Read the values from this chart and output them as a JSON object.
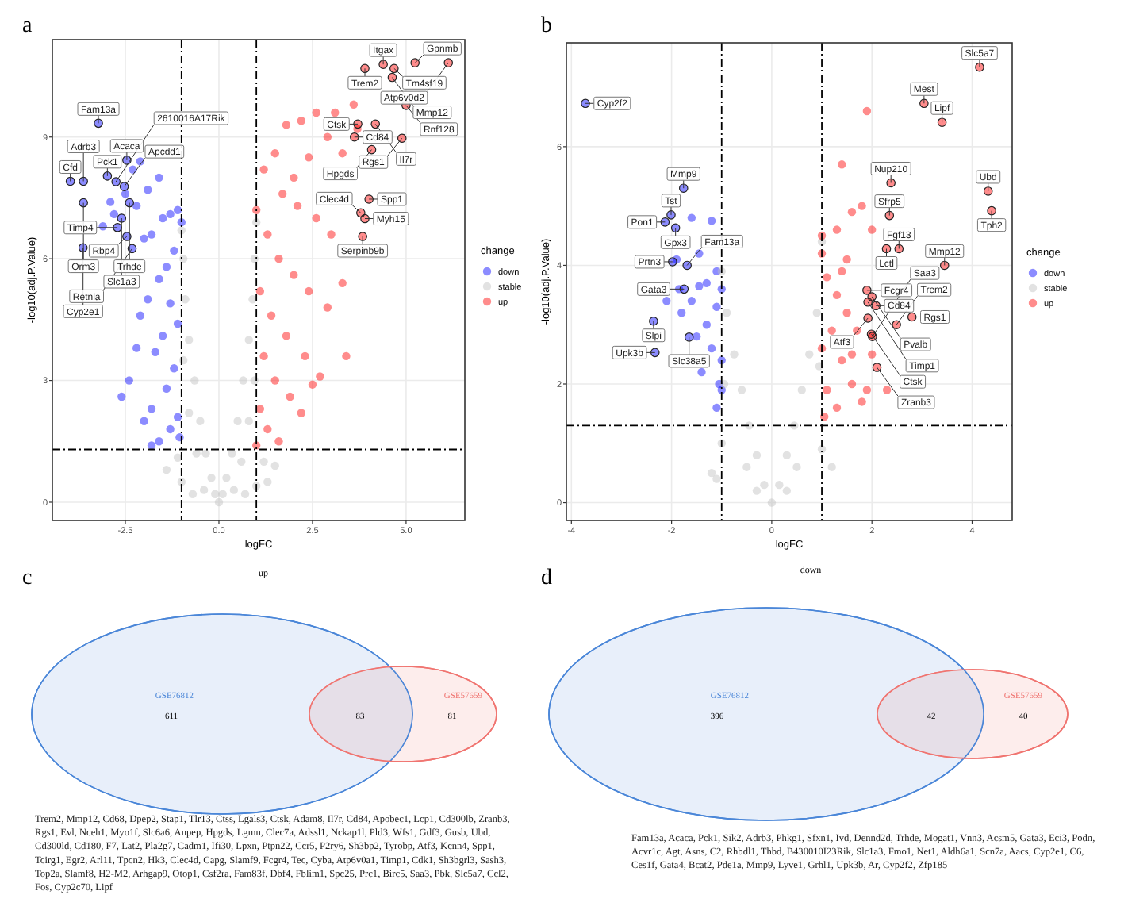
{
  "chart_data": [
    {
      "type": "scatter",
      "xlabel": "logFC",
      "ylabel": "-log10(adj.P.Value)",
      "legend_title": "change",
      "legend": "right",
      "grid": true,
      "marker": "circle",
      "xlim": [
        -4.45,
        6.57
      ],
      "ylim": [
        -0.45,
        11.4
      ],
      "xticks": [
        {
          "value": -2.5,
          "label": "-2.5"
        },
        {
          "value": 0,
          "label": "0.0"
        },
        {
          "value": 2.5,
          "label": "2.5"
        },
        {
          "value": 5,
          "label": "5.0"
        }
      ],
      "yticks": [
        0,
        3,
        6,
        9
      ],
      "ref_lines": [
        {
          "axis": "x",
          "value": -1,
          "line_style": "dashed"
        },
        {
          "axis": "x",
          "value": 1,
          "line_style": "dashed"
        },
        {
          "axis": "y",
          "value": 1.3,
          "line_style": "dashed"
        }
      ],
      "series": [
        {
          "name": "down",
          "color": "#0000ff",
          "x": [
            -1,
            -1.1,
            -1.3,
            -1.5,
            -1.8,
            -2,
            -1.2,
            -1.4,
            -1.6,
            -1.9,
            -2.1,
            -1.3,
            -1.1,
            -1.5,
            -1.7,
            -2.2,
            -2.4,
            -1.2,
            -1.4,
            -1.8,
            -2,
            -1.1,
            -1.3,
            -2.6,
            -1.6,
            -1.8,
            -1.05,
            -2.2,
            -2.3,
            -2.1,
            -2.5,
            -1.9,
            -1.6,
            -2.8,
            -3.1,
            -2.9,
            -3.22,
            -3.97,
            -3.62,
            -2.98,
            -2.46,
            -2.75,
            -2.53,
            -3.62,
            -2.39,
            -2.71,
            -2.46,
            -2.6,
            -2.32,
            -3.63
          ],
          "values": [
            6.9,
            7.2,
            7.1,
            7.0,
            6.6,
            6.5,
            6.2,
            5.8,
            5.5,
            5.0,
            4.6,
            4.9,
            4.4,
            4.1,
            3.7,
            3.8,
            3.0,
            3.3,
            2.8,
            2.3,
            2.0,
            2.1,
            1.8,
            2.6,
            1.5,
            1.4,
            1.6,
            7.3,
            8.2,
            8.4,
            7.6,
            7.7,
            8.0,
            7.1,
            6.8,
            7.4,
            9.34,
            7.91,
            7.91,
            8.04,
            8.43,
            7.9,
            7.78,
            7.38,
            7.38,
            6.77,
            6.55,
            7.0,
            6.25,
            6.27
          ]
        },
        {
          "name": "stable",
          "color": "#bebebe",
          "x": [
            0,
            0.1,
            -0.1,
            0.2,
            -0.2,
            0.35,
            -0.35,
            0.5,
            -0.5,
            0.65,
            -0.65,
            0.8,
            -0.8,
            0.9,
            -0.9,
            0.95,
            -0.95,
            -1,
            1,
            -0.6,
            0.6,
            -0.8,
            0.8,
            -0.95,
            0.95,
            -1,
            1,
            1.3,
            1.5,
            -1.4,
            0.4,
            -0.4,
            1.2,
            -1.1,
            0.7,
            -0.7
          ],
          "values": [
            0,
            0.2,
            0.2,
            0.6,
            0.6,
            1.2,
            1.2,
            2,
            2,
            3,
            3,
            4,
            4,
            5,
            5,
            6,
            6,
            6.7,
            6.9,
            1.2,
            1.0,
            2.2,
            2,
            3.5,
            3,
            0.5,
            0.4,
            0.5,
            0.9,
            0.8,
            0.3,
            0.3,
            1,
            1.1,
            0.2,
            0.2
          ]
        },
        {
          "name": "up",
          "color": "#ff0000",
          "x": [
            1,
            1.2,
            1.5,
            1.8,
            2.2,
            2.6,
            3.1,
            3.6,
            2.9,
            2.4,
            3.3,
            1.7,
            2.1,
            2.6,
            3.0,
            1.3,
            1.6,
            2.0,
            2.4,
            2.9,
            3.3,
            1.1,
            1.4,
            1.8,
            2.3,
            2.7,
            3.4,
            1.2,
            1.5,
            1.9,
            2.2,
            1.1,
            1.3,
            1.0,
            1.6,
            2.5,
            3.7,
            2.0,
            3.9,
            4.39,
            4.68,
            4.63,
            5.24,
            6.13,
            5.0,
            3.71,
            3.62,
            4.18,
            4.89,
            4.08,
            4.01,
            3.79,
            3.9,
            3.84
          ],
          "values": [
            7.2,
            8.2,
            8.6,
            9.3,
            9.4,
            9.6,
            9.6,
            9.8,
            9.0,
            8.5,
            8.6,
            7.6,
            7.3,
            7.0,
            6.6,
            6.6,
            6.0,
            5.6,
            5.2,
            4.8,
            5.4,
            5.2,
            4.6,
            4.1,
            3.6,
            3.1,
            3.6,
            3.6,
            3.0,
            2.6,
            2.2,
            2.3,
            1.8,
            1.4,
            1.5,
            2.9,
            9.2,
            8.0,
            10.69,
            10.79,
            10.69,
            10.47,
            10.83,
            10.83,
            9.78,
            9.32,
            9.0,
            9.32,
            8.97,
            8.69,
            7.47,
            7.13,
            6.99,
            6.55
          ]
        }
      ],
      "annotations": [
        "a",
        {
          "text": "Fam13a",
          "x": -3.22,
          "y": 9.34
        },
        {
          "text": "Cfd",
          "x": -3.97,
          "y": 7.91
        },
        {
          "text": "Adrb3",
          "x": -3.62,
          "y": 7.91
        },
        {
          "text": "Pck1",
          "x": -2.98,
          "y": 8.04
        },
        {
          "text": "Acaca",
          "x": -2.46,
          "y": 8.43
        },
        {
          "text": "2610016A17Rik",
          "x": -2.75,
          "y": 7.9
        },
        {
          "text": "Apcdd1",
          "x": -2.53,
          "y": 7.78
        },
        {
          "text": "Orm3",
          "x": -3.62,
          "y": 7.38
        },
        {
          "text": "Trhde",
          "x": -2.39,
          "y": 7.38
        },
        {
          "text": "Timp4",
          "x": -2.71,
          "y": 6.77
        },
        {
          "text": "Rbp4",
          "x": -2.46,
          "y": 6.55
        },
        {
          "text": "Slc1a3",
          "x": -2.6,
          "y": 7.0
        },
        {
          "text": "Retnla",
          "x": -2.32,
          "y": 6.25
        },
        {
          "text": "Cyp2e1",
          "x": -3.63,
          "y": 6.27
        },
        {
          "text": "Trem2",
          "x": 3.9,
          "y": 10.69
        },
        {
          "text": "Itgax",
          "x": 4.39,
          "y": 10.79
        },
        {
          "text": "Tm4sf19",
          "x": 4.68,
          "y": 10.69
        },
        {
          "text": "Mmp12",
          "x": 4.63,
          "y": 10.47
        },
        {
          "text": "Gpnmb",
          "x": 5.24,
          "y": 10.83
        },
        {
          "text": "Atp6v0d2",
          "x": 6.13,
          "y": 10.83
        },
        {
          "text": "Rnf128",
          "x": 5.0,
          "y": 9.78
        },
        {
          "text": "Ctsk",
          "x": 3.71,
          "y": 9.32
        },
        {
          "text": "Cd84",
          "x": 3.62,
          "y": 9.0
        },
        {
          "text": "Il7r",
          "x": 4.18,
          "y": 9.32
        },
        {
          "text": "Rgs1",
          "x": 4.89,
          "y": 8.97
        },
        {
          "text": "Hpgds",
          "x": 4.08,
          "y": 8.69
        },
        {
          "text": "Spp1",
          "x": 4.01,
          "y": 7.47
        },
        {
          "text": "Clec4d",
          "x": 3.79,
          "y": 7.13
        },
        {
          "text": "Myh15",
          "x": 3.9,
          "y": 6.99
        },
        {
          "text": "Serpinb9b",
          "x": 3.84,
          "y": 6.55
        }
      ]
    },
    {
      "type": "scatter",
      "xlabel": "logFC",
      "ylabel": "-log10(adj.P.Value)",
      "legend_title": "change",
      "legend": "right",
      "grid": true,
      "marker": "circle",
      "xlim": [
        -4.1,
        4.8
      ],
      "ylim": [
        -0.3,
        7.75
      ],
      "xticks": [
        -4,
        -2,
        0,
        2,
        4
      ],
      "yticks": [
        0,
        2,
        4,
        6
      ],
      "ref_lines": [
        {
          "axis": "x",
          "value": -1,
          "line_style": "dashed"
        },
        {
          "axis": "x",
          "value": 1,
          "line_style": "dashed"
        },
        {
          "axis": "y",
          "value": 1.3,
          "line_style": "dashed"
        }
      ],
      "series": [
        {
          "name": "down",
          "color": "#0000ff",
          "x": [
            -1,
            -1.1,
            -1.3,
            -1.5,
            -1.2,
            -1.0,
            -1.05,
            -1.4,
            -1.6,
            -1.8,
            -1.9,
            -1.45,
            -1.2,
            -1.6,
            -1.1,
            -1.0,
            -1.45,
            -1.1,
            -2.1,
            -1.3,
            -1.85,
            -3.72,
            -1.76,
            -2.01,
            -2.13,
            -1.92,
            -1.98,
            -1.69,
            -1.75,
            -2.36,
            -1.65,
            -2.33
          ],
          "values": [
            3.6,
            3.3,
            3.0,
            2.8,
            2.6,
            2.4,
            2.0,
            2.2,
            3.4,
            3.2,
            4.1,
            4.2,
            4.75,
            4.8,
            1.6,
            1.9,
            3.65,
            3.9,
            3.4,
            3.7,
            3.6,
            6.73,
            5.3,
            4.85,
            4.73,
            4.63,
            4.06,
            4.0,
            3.6,
            3.06,
            2.79,
            2.53
          ]
        },
        {
          "name": "stable",
          "color": "#bebebe",
          "x": [
            0,
            0.15,
            -0.15,
            0.3,
            -0.3,
            0.45,
            -0.45,
            0.6,
            -0.6,
            0.75,
            -0.75,
            0.9,
            -0.9,
            -1,
            1,
            -0.5,
            0.5,
            -1.0,
            1.0,
            -1.2,
            1.2,
            -0.95,
            0.95,
            0.3,
            -0.3,
            -1.1
          ],
          "values": [
            0,
            0.3,
            0.3,
            0.8,
            0.8,
            1.3,
            1.3,
            1.9,
            1.9,
            2.5,
            2.5,
            3.2,
            3.2,
            3.9,
            4.4,
            0.6,
            0.6,
            1.0,
            0.9,
            0.5,
            0.6,
            2.0,
            2.3,
            0.2,
            0.2,
            0.4
          ]
        },
        {
          "name": "up",
          "color": "#ff0000",
          "x": [
            1,
            1.1,
            1.3,
            1.5,
            1.2,
            1.0,
            1.4,
            1.6,
            1.1,
            1.3,
            1.8,
            1.05,
            1.7,
            1.5,
            1.3,
            1.6,
            1.8,
            2.0,
            1.4,
            1.9,
            1.0,
            1.4,
            2.0,
            1.6,
            1.9,
            2.3,
            4.15,
            3.04,
            3.4,
            2.38,
            4.32,
            4.39,
            2.35,
            2.54,
            2.29,
            3.45,
            1.9,
            2.0,
            1.92,
            2.08,
            2.8,
            1.92,
            1.99,
            2.49,
            2.01,
            2.1
          ],
          "values": [
            4.2,
            3.8,
            3.5,
            3.2,
            2.9,
            2.6,
            2.4,
            2.0,
            1.9,
            1.6,
            1.7,
            1.45,
            2.9,
            4.1,
            4.6,
            4.9,
            5.0,
            4.6,
            5.7,
            6.6,
            4.5,
            3.9,
            2.5,
            2.5,
            1.9,
            1.9,
            7.34,
            6.73,
            6.41,
            5.39,
            5.25,
            4.92,
            4.84,
            4.28,
            4.28,
            4.0,
            3.58,
            3.47,
            3.38,
            3.32,
            3.13,
            3.11,
            2.84,
            3.0,
            2.8,
            2.28
          ]
        }
      ],
      "annotations": [
        "b",
        {
          "text": "Cyp2f2",
          "x": -3.72,
          "y": 6.73
        },
        {
          "text": "Mmp9",
          "x": -1.76,
          "y": 5.3
        },
        {
          "text": "Tst",
          "x": -2.01,
          "y": 4.85
        },
        {
          "text": "Pon1",
          "x": -2.13,
          "y": 4.73
        },
        {
          "text": "Gpx3",
          "x": -1.92,
          "y": 4.63
        },
        {
          "text": "Prtn3",
          "x": -1.98,
          "y": 4.06
        },
        {
          "text": "Fam13a",
          "x": -1.69,
          "y": 4.0
        },
        {
          "text": "Gata3",
          "x": -1.75,
          "y": 3.6
        },
        {
          "text": "Slpi",
          "x": -2.36,
          "y": 3.06
        },
        {
          "text": "Slc38a5",
          "x": -1.65,
          "y": 2.79
        },
        {
          "text": "Upk3b",
          "x": -2.33,
          "y": 2.53
        },
        {
          "text": "Slc5a7",
          "x": 4.15,
          "y": 7.34
        },
        {
          "text": "Mest",
          "x": 3.04,
          "y": 6.73
        },
        {
          "text": "Lipf",
          "x": 3.4,
          "y": 6.41
        },
        {
          "text": "Nup210",
          "x": 2.38,
          "y": 5.39
        },
        {
          "text": "Ubd",
          "x": 4.32,
          "y": 5.25
        },
        {
          "text": "Tph2",
          "x": 4.39,
          "y": 4.92
        },
        {
          "text": "Sfrp5",
          "x": 2.35,
          "y": 4.84
        },
        {
          "text": "Fgf13",
          "x": 2.54,
          "y": 4.28
        },
        {
          "text": "Lctl",
          "x": 2.29,
          "y": 4.28
        },
        {
          "text": "Mmp12",
          "x": 3.45,
          "y": 4.0
        },
        {
          "text": "Fcgr4",
          "x": 1.9,
          "y": 3.58
        },
        {
          "text": "Pvalb",
          "x": 2.0,
          "y": 3.47
        },
        {
          "text": "Timp1",
          "x": 1.92,
          "y": 3.38
        },
        {
          "text": "Cd84",
          "x": 2.08,
          "y": 3.32
        },
        {
          "text": "Rgs1",
          "x": 2.8,
          "y": 3.13
        },
        {
          "text": "Atf3",
          "x": 1.92,
          "y": 3.11
        },
        {
          "text": "Ctsk",
          "x": 1.99,
          "y": 2.84
        },
        {
          "text": "Trem2",
          "x": 2.49,
          "y": 3.0
        },
        {
          "text": "Saa3",
          "x": 2.01,
          "y": 2.8
        },
        {
          "text": "Zranb3",
          "x": 2.1,
          "y": 2.28
        }
      ]
    },
    {
      "type": "other",
      "title": "up",
      "categories": [
        "GSE76812",
        null,
        "GSE57659"
      ],
      "values": [
        611,
        83,
        81
      ],
      "colors": [
        "#4a86d8",
        "#e6dfe8",
        "#f07470"
      ],
      "data_labels": true,
      "annotations": [
        "c",
        "Trem2, Mmp12, Cd68, Dpep2, Stap1, Tlr13, Ctss, Lgals3, Ctsk, Adam8, Il7r, Cd84, Apobec1, Lcp1, Cd300lb, Zranb3, Rgs1, Evl, Nceh1, Myo1f, Slc6a6, Anpep, Hpgds, Lgmn, Clec7a, Adssl1, Nckap1l, Pld3, Wfs1, Gdf3, Gusb, Ubd, Cd300ld, Cd180, F7, Lat2, Pla2g7, Cadm1, Ifi30, Lpxn, Ptpn22, Ccr5, P2ry6, Sh3bp2, Tyrobp, Atf3, Kcnn4, Spp1, Tcirg1, Egr2, Arl11, Tpcn2, Hk3, Clec4d, Capg, Slamf9, Fcgr4, Tec, Cyba, Atp6v0a1, Timp1, Cdk1, Sh3bgrl3, Sash3, Top2a, Slamf8, H2-M2, Arhgap9, Otop1, Csf2ra, Fam83f, Dbf4, Fblim1, Spc25, Prc1, Birc5, Saa3, Pbk, Slc5a7, Ccl2, Fos, Cyp2c70, Lipf"
      ]
    },
    {
      "type": "other",
      "title": "down",
      "categories": [
        "GSE76812",
        null,
        "GSE57659"
      ],
      "values": [
        396,
        42,
        40
      ],
      "colors": [
        "#4a86d8",
        "#e6dfe8",
        "#f07470"
      ],
      "data_labels": true,
      "annotations": [
        "d",
        "Fam13a, Acaca, Pck1, Sik2, Adrb3, Phkg1, Sfxn1, Ivd, Dennd2d, Trhde, Mogat1, Vnn3, Acsm5, Gata3, Eci3, Podn, Acvr1c, Agt, Asns, C2, Rhbdl1, Thbd, B430010I23Rik, Slc1a3, Fmo1, Net1, Aldh6a1, Scn7a, Aacs, Cyp2e1, C6, Ces1f, Gata4, Bcat2, Pde1a, Mmp9, Lyve1, Grhl1, Upk3b, Ar, Cyp2f2, Zfp185"
      ]
    }
  ]
}
